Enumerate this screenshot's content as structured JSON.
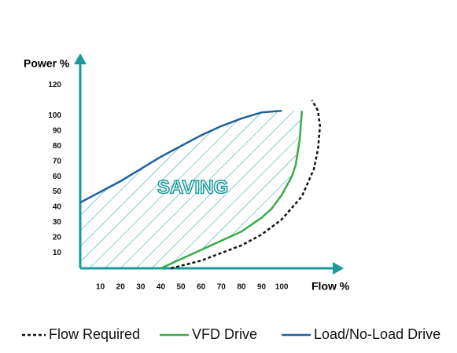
{
  "chart_data": {
    "type": "line",
    "y_label": "Power %",
    "x_label": "Flow %",
    "annotation": "SAVING",
    "xlim": [
      0,
      130
    ],
    "ylim": [
      0,
      135
    ],
    "xticks": [
      10,
      20,
      30,
      40,
      50,
      60,
      70,
      80,
      90,
      100
    ],
    "yticks": [
      10,
      20,
      30,
      40,
      50,
      60,
      70,
      80,
      90,
      100,
      120
    ],
    "axis_color": "#1a9a9a",
    "series": [
      {
        "name": "Flow Required",
        "color": "#111111",
        "linestyle": "dashed",
        "x": [
          45,
          60,
          70,
          80,
          90,
          100,
          110,
          116,
          118,
          119,
          118,
          115
        ],
        "values": [
          0,
          5,
          10,
          15,
          22,
          32,
          47,
          65,
          78,
          93,
          103,
          110
        ]
      },
      {
        "name": "VFD Drive",
        "color": "#3aaa4a",
        "linestyle": "solid",
        "x": [
          40,
          50,
          60,
          70,
          80,
          90,
          95,
          100,
          105,
          107,
          109,
          110
        ],
        "values": [
          0,
          6,
          12,
          18,
          24,
          33,
          39,
          48,
          60,
          68,
          85,
          103
        ]
      },
      {
        "name": "Load/No-Load Drive",
        "color": "#1f5fa0",
        "linestyle": "solid",
        "x": [
          0,
          10,
          20,
          30,
          40,
          50,
          60,
          70,
          80,
          90,
          100
        ],
        "values": [
          43,
          50,
          57,
          65,
          73,
          80,
          87,
          93,
          98,
          102,
          103
        ]
      }
    ]
  }
}
